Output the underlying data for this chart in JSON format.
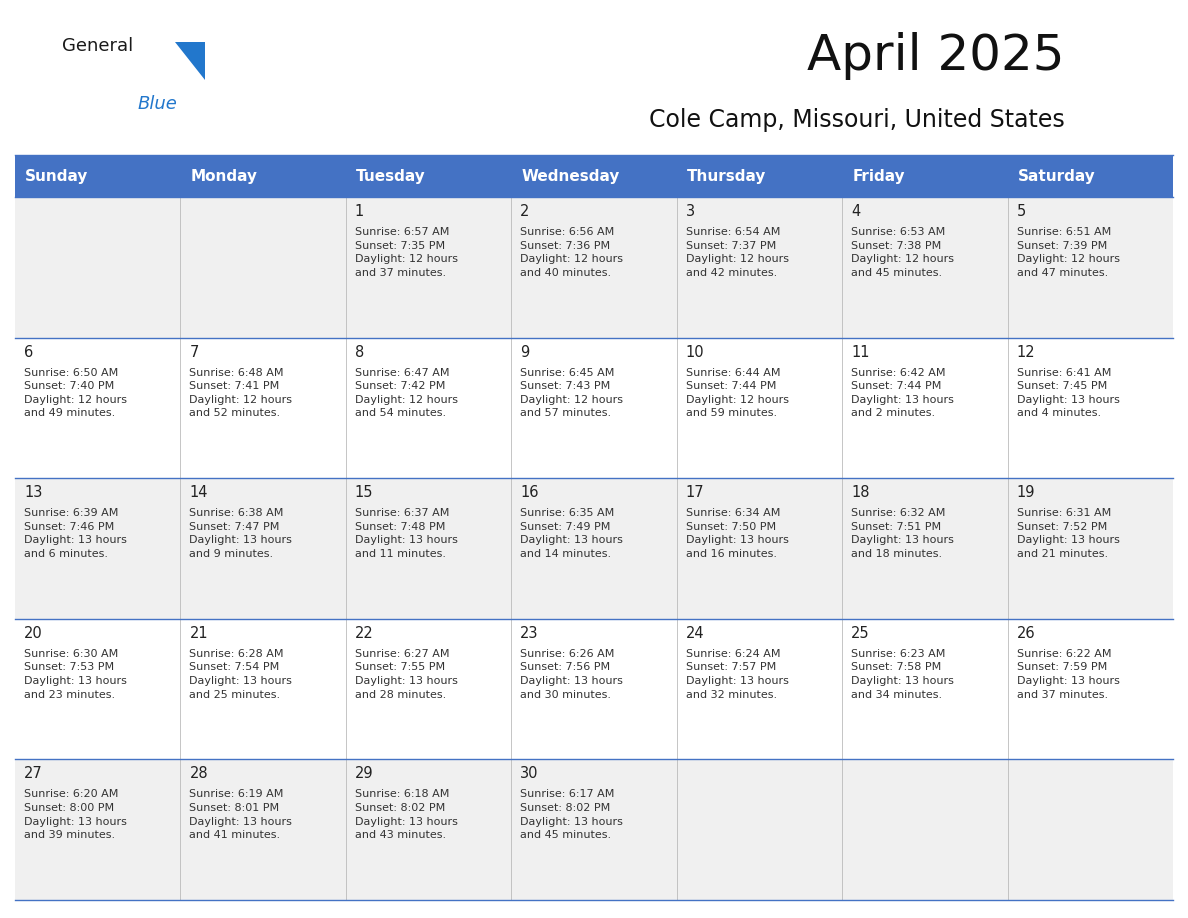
{
  "title": "April 2025",
  "subtitle": "Cole Camp, Missouri, United States",
  "header_bg": "#4472C4",
  "header_text_color": "#FFFFFF",
  "header_font_size": 11,
  "day_names": [
    "Sunday",
    "Monday",
    "Tuesday",
    "Wednesday",
    "Thursday",
    "Friday",
    "Saturday"
  ],
  "title_font_size": 36,
  "subtitle_font_size": 17,
  "cell_odd_bg": "#F0F0F0",
  "cell_even_bg": "#FFFFFF",
  "line_color": "#4472C4",
  "number_font_size": 10.5,
  "info_font_size": 8.0,
  "weeks": [
    [
      {
        "day": "",
        "info": ""
      },
      {
        "day": "",
        "info": ""
      },
      {
        "day": "1",
        "info": "Sunrise: 6:57 AM\nSunset: 7:35 PM\nDaylight: 12 hours\nand 37 minutes."
      },
      {
        "day": "2",
        "info": "Sunrise: 6:56 AM\nSunset: 7:36 PM\nDaylight: 12 hours\nand 40 minutes."
      },
      {
        "day": "3",
        "info": "Sunrise: 6:54 AM\nSunset: 7:37 PM\nDaylight: 12 hours\nand 42 minutes."
      },
      {
        "day": "4",
        "info": "Sunrise: 6:53 AM\nSunset: 7:38 PM\nDaylight: 12 hours\nand 45 minutes."
      },
      {
        "day": "5",
        "info": "Sunrise: 6:51 AM\nSunset: 7:39 PM\nDaylight: 12 hours\nand 47 minutes."
      }
    ],
    [
      {
        "day": "6",
        "info": "Sunrise: 6:50 AM\nSunset: 7:40 PM\nDaylight: 12 hours\nand 49 minutes."
      },
      {
        "day": "7",
        "info": "Sunrise: 6:48 AM\nSunset: 7:41 PM\nDaylight: 12 hours\nand 52 minutes."
      },
      {
        "day": "8",
        "info": "Sunrise: 6:47 AM\nSunset: 7:42 PM\nDaylight: 12 hours\nand 54 minutes."
      },
      {
        "day": "9",
        "info": "Sunrise: 6:45 AM\nSunset: 7:43 PM\nDaylight: 12 hours\nand 57 minutes."
      },
      {
        "day": "10",
        "info": "Sunrise: 6:44 AM\nSunset: 7:44 PM\nDaylight: 12 hours\nand 59 minutes."
      },
      {
        "day": "11",
        "info": "Sunrise: 6:42 AM\nSunset: 7:44 PM\nDaylight: 13 hours\nand 2 minutes."
      },
      {
        "day": "12",
        "info": "Sunrise: 6:41 AM\nSunset: 7:45 PM\nDaylight: 13 hours\nand 4 minutes."
      }
    ],
    [
      {
        "day": "13",
        "info": "Sunrise: 6:39 AM\nSunset: 7:46 PM\nDaylight: 13 hours\nand 6 minutes."
      },
      {
        "day": "14",
        "info": "Sunrise: 6:38 AM\nSunset: 7:47 PM\nDaylight: 13 hours\nand 9 minutes."
      },
      {
        "day": "15",
        "info": "Sunrise: 6:37 AM\nSunset: 7:48 PM\nDaylight: 13 hours\nand 11 minutes."
      },
      {
        "day": "16",
        "info": "Sunrise: 6:35 AM\nSunset: 7:49 PM\nDaylight: 13 hours\nand 14 minutes."
      },
      {
        "day": "17",
        "info": "Sunrise: 6:34 AM\nSunset: 7:50 PM\nDaylight: 13 hours\nand 16 minutes."
      },
      {
        "day": "18",
        "info": "Sunrise: 6:32 AM\nSunset: 7:51 PM\nDaylight: 13 hours\nand 18 minutes."
      },
      {
        "day": "19",
        "info": "Sunrise: 6:31 AM\nSunset: 7:52 PM\nDaylight: 13 hours\nand 21 minutes."
      }
    ],
    [
      {
        "day": "20",
        "info": "Sunrise: 6:30 AM\nSunset: 7:53 PM\nDaylight: 13 hours\nand 23 minutes."
      },
      {
        "day": "21",
        "info": "Sunrise: 6:28 AM\nSunset: 7:54 PM\nDaylight: 13 hours\nand 25 minutes."
      },
      {
        "day": "22",
        "info": "Sunrise: 6:27 AM\nSunset: 7:55 PM\nDaylight: 13 hours\nand 28 minutes."
      },
      {
        "day": "23",
        "info": "Sunrise: 6:26 AM\nSunset: 7:56 PM\nDaylight: 13 hours\nand 30 minutes."
      },
      {
        "day": "24",
        "info": "Sunrise: 6:24 AM\nSunset: 7:57 PM\nDaylight: 13 hours\nand 32 minutes."
      },
      {
        "day": "25",
        "info": "Sunrise: 6:23 AM\nSunset: 7:58 PM\nDaylight: 13 hours\nand 34 minutes."
      },
      {
        "day": "26",
        "info": "Sunrise: 6:22 AM\nSunset: 7:59 PM\nDaylight: 13 hours\nand 37 minutes."
      }
    ],
    [
      {
        "day": "27",
        "info": "Sunrise: 6:20 AM\nSunset: 8:00 PM\nDaylight: 13 hours\nand 39 minutes."
      },
      {
        "day": "28",
        "info": "Sunrise: 6:19 AM\nSunset: 8:01 PM\nDaylight: 13 hours\nand 41 minutes."
      },
      {
        "day": "29",
        "info": "Sunrise: 6:18 AM\nSunset: 8:02 PM\nDaylight: 13 hours\nand 43 minutes."
      },
      {
        "day": "30",
        "info": "Sunrise: 6:17 AM\nSunset: 8:02 PM\nDaylight: 13 hours\nand 45 minutes."
      },
      {
        "day": "",
        "info": ""
      },
      {
        "day": "",
        "info": ""
      },
      {
        "day": "",
        "info": ""
      }
    ]
  ]
}
